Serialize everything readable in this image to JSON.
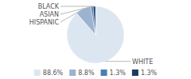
{
  "chart_data": {
    "type": "pie",
    "categories": [
      "WHITE",
      "HISPANIC",
      "ASIAN",
      "BLACK"
    ],
    "values": [
      88.6,
      8.8,
      1.3,
      1.3
    ],
    "value_labels": [
      "88.6%",
      "8.8%",
      "1.3%",
      "1.3%"
    ],
    "colors": [
      "#dce6f1",
      "#9ab3d0",
      "#4a7fb5",
      "#1e3a5f"
    ],
    "legend": "bottom"
  }
}
